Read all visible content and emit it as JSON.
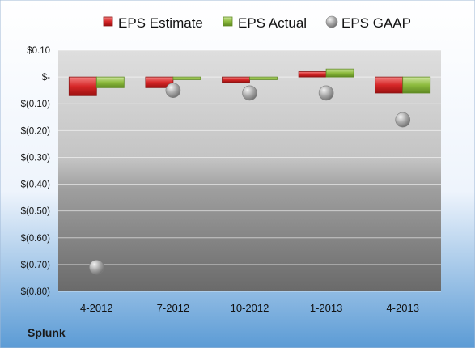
{
  "chart_data": {
    "type": "bar",
    "categories": [
      "4-2012",
      "7-2012",
      "10-2012",
      "1-2013",
      "4-2013"
    ],
    "series": [
      {
        "name": "EPS Estimate",
        "kind": "bar",
        "color": "#d62728",
        "values": [
          -0.07,
          -0.04,
          -0.02,
          0.02,
          -0.06
        ]
      },
      {
        "name": "EPS Actual",
        "kind": "bar",
        "color": "#8dbb3e",
        "values": [
          -0.04,
          -0.01,
          -0.01,
          0.03,
          -0.06
        ]
      },
      {
        "name": "EPS GAAP",
        "kind": "scatter",
        "color": "#a6a6a6",
        "values": [
          -0.71,
          -0.05,
          -0.06,
          -0.06,
          -0.16
        ]
      }
    ],
    "yticks": [
      "$0.10",
      "$-",
      "$(0.10)",
      "$(0.20)",
      "$(0.30)",
      "$(0.40)",
      "$(0.50)",
      "$(0.60)",
      "$(0.70)",
      "$(0.80)"
    ],
    "ylim": [
      -0.8,
      0.1
    ],
    "grid": true,
    "legend_position": "top",
    "footer": "Splunk"
  }
}
